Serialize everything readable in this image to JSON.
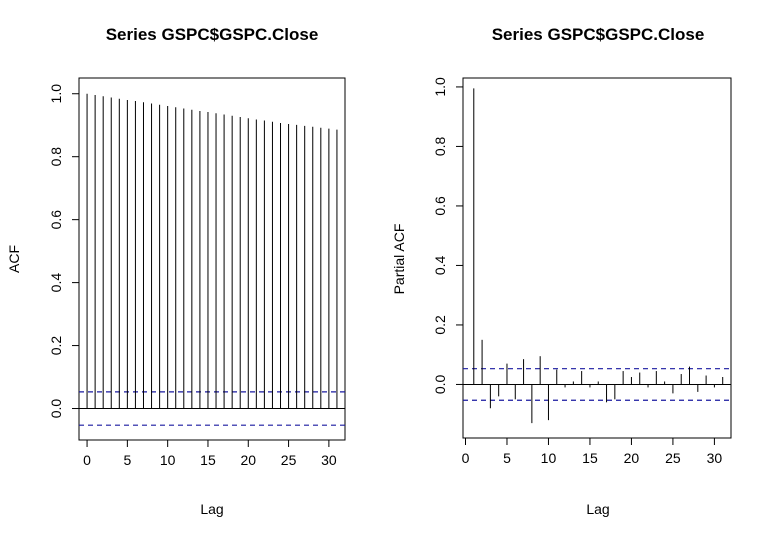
{
  "chart_data": [
    {
      "type": "bar",
      "title": "Series  GSPC$GSPC.Close",
      "xlabel": "Lag",
      "ylabel": "ACF",
      "xlim": [
        -1,
        32
      ],
      "ylim": [
        -0.1,
        1.05
      ],
      "xticks": [
        "0",
        "5",
        "10",
        "15",
        "20",
        "25",
        "30"
      ],
      "yticks": [
        "0.0",
        "0.2",
        "0.4",
        "0.6",
        "0.8",
        "1.0"
      ],
      "confidence_band": [
        -0.053,
        0.053
      ],
      "lags": [
        0,
        1,
        2,
        3,
        4,
        5,
        6,
        7,
        8,
        9,
        10,
        11,
        12,
        13,
        14,
        15,
        16,
        17,
        18,
        19,
        20,
        21,
        22,
        23,
        24,
        25,
        26,
        27,
        28,
        29,
        30,
        31
      ],
      "values": [
        1.0,
        0.996,
        0.992,
        0.988,
        0.984,
        0.98,
        0.977,
        0.973,
        0.969,
        0.965,
        0.961,
        0.957,
        0.953,
        0.949,
        0.945,
        0.942,
        0.938,
        0.934,
        0.93,
        0.926,
        0.922,
        0.918,
        0.915,
        0.911,
        0.907,
        0.904,
        0.901,
        0.898,
        0.895,
        0.892,
        0.889,
        0.886
      ]
    },
    {
      "type": "bar",
      "title": "Series  GSPC$GSPC.Close",
      "xlabel": "Lag",
      "ylabel": "Partial ACF",
      "xlim": [
        -0.3,
        32
      ],
      "ylim": [
        -0.18,
        1.03
      ],
      "xticks": [
        "0",
        "5",
        "10",
        "15",
        "20",
        "25",
        "30"
      ],
      "yticks": [
        "0.0",
        "0.2",
        "0.4",
        "0.6",
        "0.8",
        "1.0"
      ],
      "confidence_band": [
        -0.053,
        0.053
      ],
      "lags": [
        1,
        2,
        3,
        4,
        5,
        6,
        7,
        8,
        9,
        10,
        11,
        12,
        13,
        14,
        15,
        16,
        17,
        18,
        19,
        20,
        21,
        22,
        23,
        24,
        25,
        26,
        27,
        28,
        29,
        30,
        31
      ],
      "values": [
        0.995,
        0.15,
        -0.08,
        -0.04,
        0.07,
        -0.05,
        0.085,
        -0.13,
        0.095,
        -0.12,
        0.05,
        -0.01,
        0.01,
        0.045,
        -0.01,
        0.01,
        -0.06,
        -0.05,
        0.045,
        0.025,
        0.04,
        -0.01,
        0.045,
        0.01,
        -0.03,
        0.035,
        0.06,
        -0.025,
        0.03,
        -0.01,
        0.025
      ]
    }
  ]
}
